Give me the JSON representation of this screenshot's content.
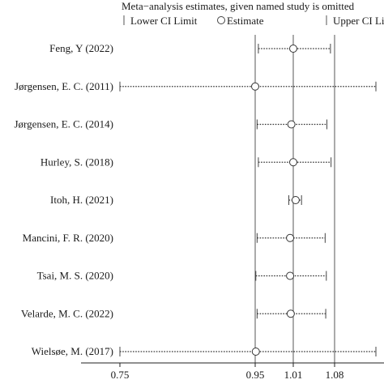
{
  "chart_data": {
    "type": "forest",
    "title": "Meta−analysis estimates, given named study is omitted",
    "legend": {
      "items": [
        {
          "label": "Lower CI Limit",
          "marker": "bar"
        },
        {
          "label": "Estimate",
          "marker": "circle"
        },
        {
          "label": "Upper CI Limit",
          "marker": "bar"
        }
      ],
      "placement": "top"
    },
    "x_ticks": [
      0.75,
      0.95,
      1.01,
      1.08
    ],
    "x_tick_labels": [
      "0.75",
      "0.95",
      "1.01",
      "1.08"
    ],
    "reference_lines": [
      0.95,
      1.01,
      1.08
    ],
    "xlim": [
      0.75,
      1.15
    ],
    "xlabel": "",
    "ylabel": "",
    "grid": false,
    "studies": [
      {
        "label": "Feng, Y (2022)",
        "estimate": 1.01,
        "lower": 0.955,
        "upper": 1.073
      },
      {
        "label": "Jørgensen, E. C. (2011)",
        "estimate": 0.95,
        "lower": 0.75,
        "upper": 1.15
      },
      {
        "label": "Jørgensen, E. C. (2014)",
        "estimate": 1.007,
        "lower": 0.953,
        "upper": 1.067
      },
      {
        "label": "Hurley, S. (2018)",
        "estimate": 1.01,
        "lower": 0.955,
        "upper": 1.074
      },
      {
        "label": "Itoh, H. (2021)",
        "estimate": 1.014,
        "lower": 1.003,
        "upper": 1.024
      },
      {
        "label": "Mancini, F. R. (2020)",
        "estimate": 1.005,
        "lower": 0.953,
        "upper": 1.064
      },
      {
        "label": "Tsai, M. S. (2020)",
        "estimate": 1.005,
        "lower": 0.951,
        "upper": 1.066
      },
      {
        "label": "Velarde, M. C. (2022)",
        "estimate": 1.006,
        "lower": 0.953,
        "upper": 1.065
      },
      {
        "label": "Wielsøe, M. (2017)",
        "estimate": 0.951,
        "lower": 0.75,
        "upper": 1.15
      }
    ]
  }
}
